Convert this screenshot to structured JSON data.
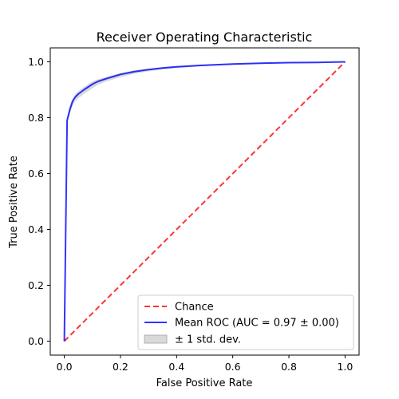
{
  "chart_data": {
    "type": "line",
    "title": "Receiver Operating Characteristic",
    "xlabel": "False Positive Rate",
    "ylabel": "True Positive Rate",
    "xlim": [
      -0.05,
      1.05
    ],
    "ylim": [
      -0.05,
      1.05
    ],
    "xticks": [
      0.0,
      0.2,
      0.4,
      0.6,
      0.8,
      1.0
    ],
    "yticks": [
      0.0,
      0.2,
      0.4,
      0.6,
      0.8,
      1.0
    ],
    "xtick_labels": [
      "0.0",
      "0.2",
      "0.4",
      "0.6",
      "0.8",
      "1.0"
    ],
    "ytick_labels": [
      "0.0",
      "0.2",
      "0.4",
      "0.6",
      "0.8",
      "1.0"
    ],
    "grid": false,
    "legend_position": "lower-right",
    "series": [
      {
        "name": "Chance",
        "style": "dashed",
        "color": "#ff0000",
        "x": [
          0.0,
          1.0
        ],
        "y": [
          0.0,
          1.0
        ]
      },
      {
        "name": "Mean ROC (AUC = 0.97 ± 0.00)",
        "style": "solid",
        "color": "#0000ff",
        "x": [
          0.0,
          0.01,
          0.02,
          0.03,
          0.04,
          0.05,
          0.07,
          0.1,
          0.12,
          0.15,
          0.2,
          0.25,
          0.3,
          0.35,
          0.4,
          0.5,
          0.6,
          0.7,
          0.8,
          0.9,
          1.0
        ],
        "y": [
          0.0,
          0.79,
          0.83,
          0.86,
          0.875,
          0.885,
          0.9,
          0.92,
          0.93,
          0.94,
          0.955,
          0.965,
          0.972,
          0.978,
          0.982,
          0.988,
          0.992,
          0.995,
          0.997,
          0.998,
          1.0
        ]
      },
      {
        "name": "± 1 std. dev.",
        "style": "band",
        "color": "#808080",
        "x": [
          0.0,
          0.01,
          0.02,
          0.03,
          0.04,
          0.05,
          0.07,
          0.1,
          0.12,
          0.15,
          0.2,
          0.25,
          0.3,
          0.35,
          0.4,
          0.5,
          0.6,
          0.7,
          0.8,
          0.9,
          1.0
        ],
        "upper": [
          0.0,
          0.8,
          0.845,
          0.87,
          0.885,
          0.895,
          0.91,
          0.93,
          0.938,
          0.946,
          0.96,
          0.97,
          0.976,
          0.981,
          0.985,
          0.99,
          0.994,
          0.996,
          0.998,
          0.999,
          1.0
        ],
        "lower": [
          0.0,
          0.78,
          0.815,
          0.845,
          0.86,
          0.87,
          0.885,
          0.905,
          0.918,
          0.93,
          0.945,
          0.958,
          0.966,
          0.973,
          0.978,
          0.985,
          0.99,
          0.993,
          0.996,
          0.997,
          1.0
        ]
      }
    ]
  }
}
